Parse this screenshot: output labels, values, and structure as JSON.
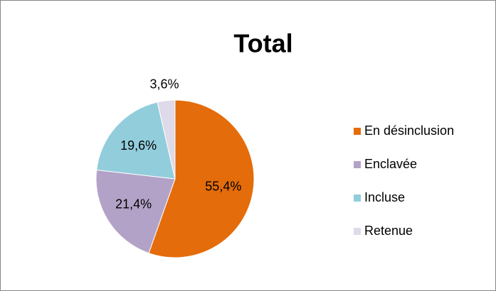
{
  "chart_data": {
    "type": "pie",
    "title": "Total",
    "categories": [
      "En désinclusion",
      "Enclavée",
      "Incluse",
      "Retenue"
    ],
    "values": [
      55.4,
      21.4,
      19.6,
      3.6
    ],
    "value_labels": [
      "55,4%",
      "21,4%",
      "19,6%",
      "3,6%"
    ],
    "colors": [
      "#e46c0a",
      "#b3a2c7",
      "#92cddc",
      "#dfdaea"
    ],
    "legend": "right"
  }
}
